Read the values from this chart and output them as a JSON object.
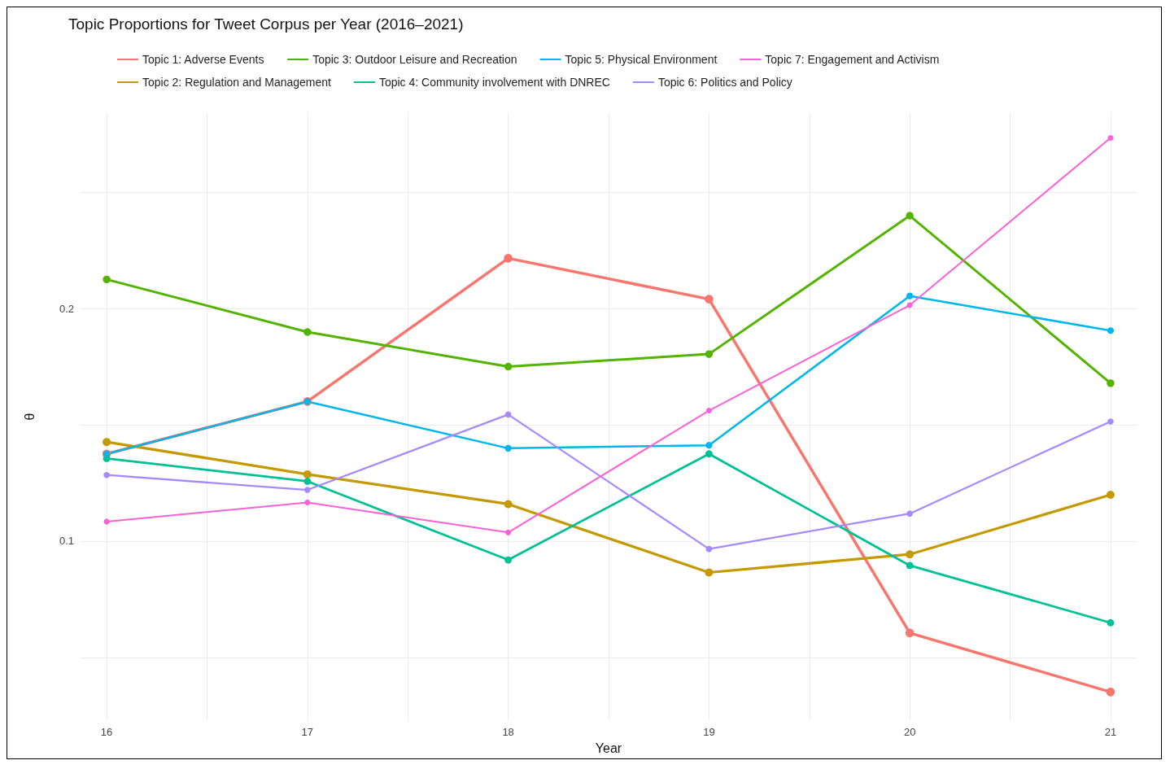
{
  "chart_data": {
    "type": "line",
    "title": "Topic Proportions for Tweet Corpus per Year (2016–2021)",
    "xlabel": "Year",
    "ylabel": "θ",
    "x": [
      16,
      17,
      18,
      19,
      20,
      21
    ],
    "series": [
      {
        "name": "Topic 1: Adverse Events",
        "color": "#f8766d",
        "values": [
          0.1375,
          0.16,
          0.2216,
          0.204,
          0.0605,
          0.0351
        ]
      },
      {
        "name": "Topic 2: Regulation and Management",
        "color": "#c49a00",
        "values": [
          0.1426,
          0.1287,
          0.1159,
          0.0865,
          0.0943,
          0.1199
        ]
      },
      {
        "name": "Topic 3: Outdoor Leisure and Recreation",
        "color": "#53b400",
        "values": [
          0.2125,
          0.1899,
          0.175,
          0.1804,
          0.2399,
          0.1679
        ]
      },
      {
        "name": "Topic 4: Community involvement with DNREC",
        "color": "#00c094",
        "values": [
          0.1355,
          0.1257,
          0.0919,
          0.1375,
          0.0895,
          0.0649
        ]
      },
      {
        "name": "Topic 5: Physical Environment",
        "color": "#00b6eb",
        "values": [
          0.1375,
          0.16,
          0.1399,
          0.1412,
          0.2054,
          0.1905
        ]
      },
      {
        "name": "Topic 6: Politics and Policy",
        "color": "#a58aff",
        "values": [
          0.1284,
          0.122,
          0.1544,
          0.0966,
          0.1118,
          0.1514
        ]
      },
      {
        "name": "Topic 7: Engagement and Activism",
        "color": "#fb61d7",
        "values": [
          0.1084,
          0.1166,
          0.1037,
          0.1561,
          0.2014,
          0.2733
        ]
      }
    ],
    "xlim": [
      15.87,
      21.13
    ],
    "xticks": [
      16,
      {
        "value": 16.5,
        "label": null
      },
      17,
      {
        "value": 17.5,
        "label": null
      },
      18,
      {
        "value": 18.5,
        "label": null
      },
      19,
      {
        "value": 19.5,
        "label": null
      },
      20,
      {
        "value": 20.5,
        "label": null
      },
      21
    ],
    "ylim": [
      0.023,
      0.284
    ],
    "yticks": [
      {
        "value": 0.05,
        "label": null
      },
      0.1,
      {
        "value": 0.15,
        "label": null
      },
      0.2,
      {
        "value": 0.25,
        "label": null
      }
    ],
    "grid": true,
    "legend": "top",
    "marker": "circle",
    "line_style": "solid"
  }
}
